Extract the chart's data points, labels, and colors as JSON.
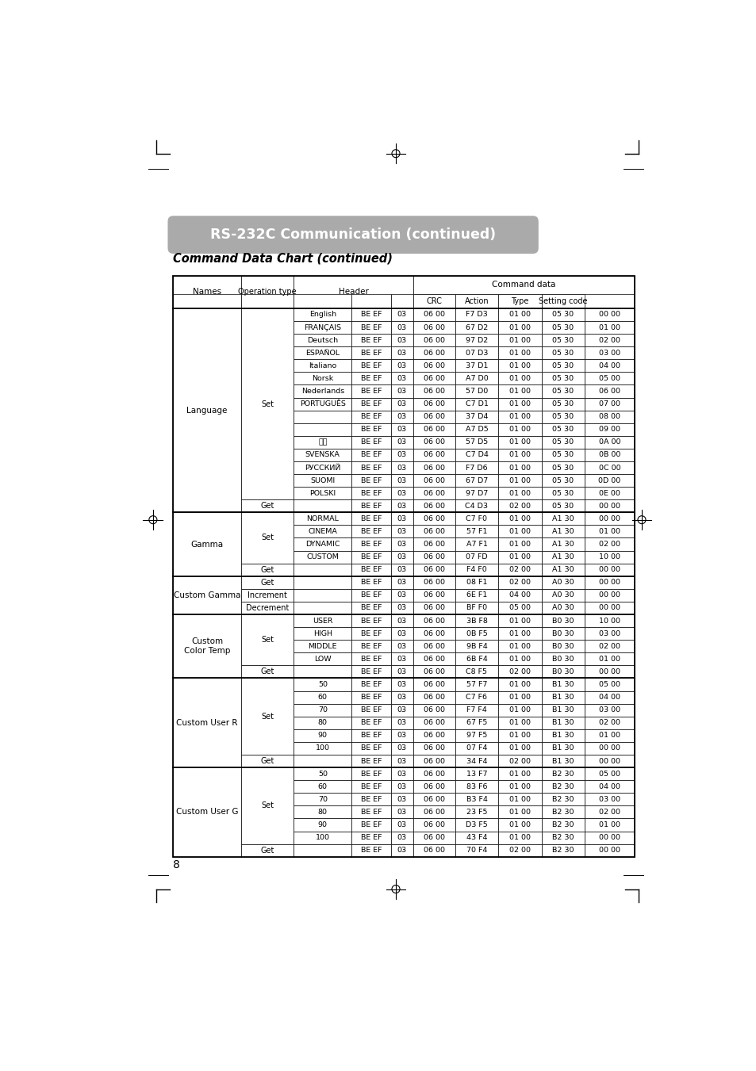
{
  "title": "RS-232C Communication (continued)",
  "subtitle": "Command Data Chart (continued)",
  "rows": [
    [
      "Language",
      "Set",
      "English",
      "BE EF",
      "03",
      "06 00",
      "F7 D3",
      "01 00",
      "05 30",
      "00 00"
    ],
    [
      "",
      "",
      "FRANÇAIS",
      "BE EF",
      "03",
      "06 00",
      "67 D2",
      "01 00",
      "05 30",
      "01 00"
    ],
    [
      "",
      "",
      "Deutsch",
      "BE EF",
      "03",
      "06 00",
      "97 D2",
      "01 00",
      "05 30",
      "02 00"
    ],
    [
      "",
      "",
      "ESPAÑOL",
      "BE EF",
      "03",
      "06 00",
      "07 D3",
      "01 00",
      "05 30",
      "03 00"
    ],
    [
      "",
      "",
      "Italiano",
      "BE EF",
      "03",
      "06 00",
      "37 D1",
      "01 00",
      "05 30",
      "04 00"
    ],
    [
      "",
      "",
      "Norsk",
      "BE EF",
      "03",
      "06 00",
      "A7 D0",
      "01 00",
      "05 30",
      "05 00"
    ],
    [
      "",
      "",
      "Nederlands",
      "BE EF",
      "03",
      "06 00",
      "57 D0",
      "01 00",
      "05 30",
      "06 00"
    ],
    [
      "",
      "",
      "PORTUGUÊS",
      "BE EF",
      "03",
      "06 00",
      "C7 D1",
      "01 00",
      "05 30",
      "07 00"
    ],
    [
      "",
      "",
      "",
      "BE EF",
      "03",
      "06 00",
      "37 D4",
      "01 00",
      "05 30",
      "08 00"
    ],
    [
      "",
      "",
      "",
      "BE EF",
      "03",
      "06 00",
      "A7 D5",
      "01 00",
      "05 30",
      "09 00"
    ],
    [
      "",
      "",
      "한글",
      "BE EF",
      "03",
      "06 00",
      "57 D5",
      "01 00",
      "05 30",
      "0A 00"
    ],
    [
      "",
      "",
      "SVENSKA",
      "BE EF",
      "03",
      "06 00",
      "C7 D4",
      "01 00",
      "05 30",
      "0B 00"
    ],
    [
      "",
      "",
      "РУССКИЙ",
      "BE EF",
      "03",
      "06 00",
      "F7 D6",
      "01 00",
      "05 30",
      "0C 00"
    ],
    [
      "",
      "",
      "SUOMI",
      "BE EF",
      "03",
      "06 00",
      "67 D7",
      "01 00",
      "05 30",
      "0D 00"
    ],
    [
      "",
      "",
      "POLSKI",
      "BE EF",
      "03",
      "06 00",
      "97 D7",
      "01 00",
      "05 30",
      "0E 00"
    ],
    [
      "",
      "Get",
      "",
      "BE EF",
      "03",
      "06 00",
      "C4 D3",
      "02 00",
      "05 30",
      "00 00"
    ],
    [
      "Gamma",
      "Set",
      "NORMAL",
      "BE EF",
      "03",
      "06 00",
      "C7 F0",
      "01 00",
      "A1 30",
      "00 00"
    ],
    [
      "",
      "",
      "CINEMA",
      "BE EF",
      "03",
      "06 00",
      "57 F1",
      "01 00",
      "A1 30",
      "01 00"
    ],
    [
      "",
      "",
      "DYNAMIC",
      "BE EF",
      "03",
      "06 00",
      "A7 F1",
      "01 00",
      "A1 30",
      "02 00"
    ],
    [
      "",
      "",
      "CUSTOM",
      "BE EF",
      "03",
      "06 00",
      "07 FD",
      "01 00",
      "A1 30",
      "10 00"
    ],
    [
      "",
      "Get",
      "",
      "BE EF",
      "03",
      "06 00",
      "F4 F0",
      "02 00",
      "A1 30",
      "00 00"
    ],
    [
      "Custom Gamma",
      "Get",
      "",
      "BE EF",
      "03",
      "06 00",
      "08 F1",
      "02 00",
      "A0 30",
      "00 00"
    ],
    [
      "",
      "Increment",
      "",
      "BE EF",
      "03",
      "06 00",
      "6E F1",
      "04 00",
      "A0 30",
      "00 00"
    ],
    [
      "",
      "Decrement",
      "",
      "BE EF",
      "03",
      "06 00",
      "BF F0",
      "05 00",
      "A0 30",
      "00 00"
    ],
    [
      "Custom\nColor Temp",
      "Set",
      "USER",
      "BE EF",
      "03",
      "06 00",
      "3B F8",
      "01 00",
      "B0 30",
      "10 00"
    ],
    [
      "",
      "",
      "HIGH",
      "BE EF",
      "03",
      "06 00",
      "0B F5",
      "01 00",
      "B0 30",
      "03 00"
    ],
    [
      "",
      "",
      "MIDDLE",
      "BE EF",
      "03",
      "06 00",
      "9B F4",
      "01 00",
      "B0 30",
      "02 00"
    ],
    [
      "",
      "",
      "LOW",
      "BE EF",
      "03",
      "06 00",
      "6B F4",
      "01 00",
      "B0 30",
      "01 00"
    ],
    [
      "",
      "Get",
      "",
      "BE EF",
      "03",
      "06 00",
      "C8 F5",
      "02 00",
      "B0 30",
      "00 00"
    ],
    [
      "Custom User R",
      "Set",
      "50",
      "BE EF",
      "03",
      "06 00",
      "57 F7",
      "01 00",
      "B1 30",
      "05 00"
    ],
    [
      "",
      "",
      "60",
      "BE EF",
      "03",
      "06 00",
      "C7 F6",
      "01 00",
      "B1 30",
      "04 00"
    ],
    [
      "",
      "",
      "70",
      "BE EF",
      "03",
      "06 00",
      "F7 F4",
      "01 00",
      "B1 30",
      "03 00"
    ],
    [
      "",
      "",
      "80",
      "BE EF",
      "03",
      "06 00",
      "67 F5",
      "01 00",
      "B1 30",
      "02 00"
    ],
    [
      "",
      "",
      "90",
      "BE EF",
      "03",
      "06 00",
      "97 F5",
      "01 00",
      "B1 30",
      "01 00"
    ],
    [
      "",
      "",
      "100",
      "BE EF",
      "03",
      "06 00",
      "07 F4",
      "01 00",
      "B1 30",
      "00 00"
    ],
    [
      "",
      "Get",
      "",
      "BE EF",
      "03",
      "06 00",
      "34 F4",
      "02 00",
      "B1 30",
      "00 00"
    ],
    [
      "Custom User G",
      "Set",
      "50",
      "BE EF",
      "03",
      "06 00",
      "13 F7",
      "01 00",
      "B2 30",
      "05 00"
    ],
    [
      "",
      "",
      "60",
      "BE EF",
      "03",
      "06 00",
      "83 F6",
      "01 00",
      "B2 30",
      "04 00"
    ],
    [
      "",
      "",
      "70",
      "BE EF",
      "03",
      "06 00",
      "B3 F4",
      "01 00",
      "B2 30",
      "03 00"
    ],
    [
      "",
      "",
      "80",
      "BE EF",
      "03",
      "06 00",
      "23 F5",
      "01 00",
      "B2 30",
      "02 00"
    ],
    [
      "",
      "",
      "90",
      "BE EF",
      "03",
      "06 00",
      "D3 F5",
      "01 00",
      "B2 30",
      "01 00"
    ],
    [
      "",
      "",
      "100",
      "BE EF",
      "03",
      "06 00",
      "43 F4",
      "01 00",
      "B2 30",
      "00 00"
    ],
    [
      "",
      "Get",
      "",
      "BE EF",
      "03",
      "06 00",
      "70 F4",
      "02 00",
      "B2 30",
      "00 00"
    ]
  ],
  "name_groups": [
    [
      "Language",
      0,
      15
    ],
    [
      "Gamma",
      16,
      20
    ],
    [
      "Custom Gamma",
      21,
      23
    ],
    [
      "Custom\nColor Temp",
      24,
      28
    ],
    [
      "Custom User R",
      29,
      35
    ],
    [
      "Custom User G",
      36,
      42
    ]
  ],
  "op_groups": [
    [
      "Set",
      0,
      14
    ],
    [
      "Get",
      15,
      15
    ],
    [
      "Set",
      16,
      19
    ],
    [
      "Get",
      20,
      20
    ],
    [
      "Get",
      21,
      21
    ],
    [
      "Increment",
      22,
      22
    ],
    [
      "Decrement",
      23,
      23
    ],
    [
      "Set",
      24,
      27
    ],
    [
      "Get",
      28,
      28
    ],
    [
      "Set",
      29,
      34
    ],
    [
      "Get",
      35,
      35
    ],
    [
      "Set",
      36,
      41
    ],
    [
      "Get",
      42,
      42
    ]
  ],
  "thick_borders_after": [
    15,
    20,
    23,
    28,
    35
  ],
  "page_num": "8"
}
